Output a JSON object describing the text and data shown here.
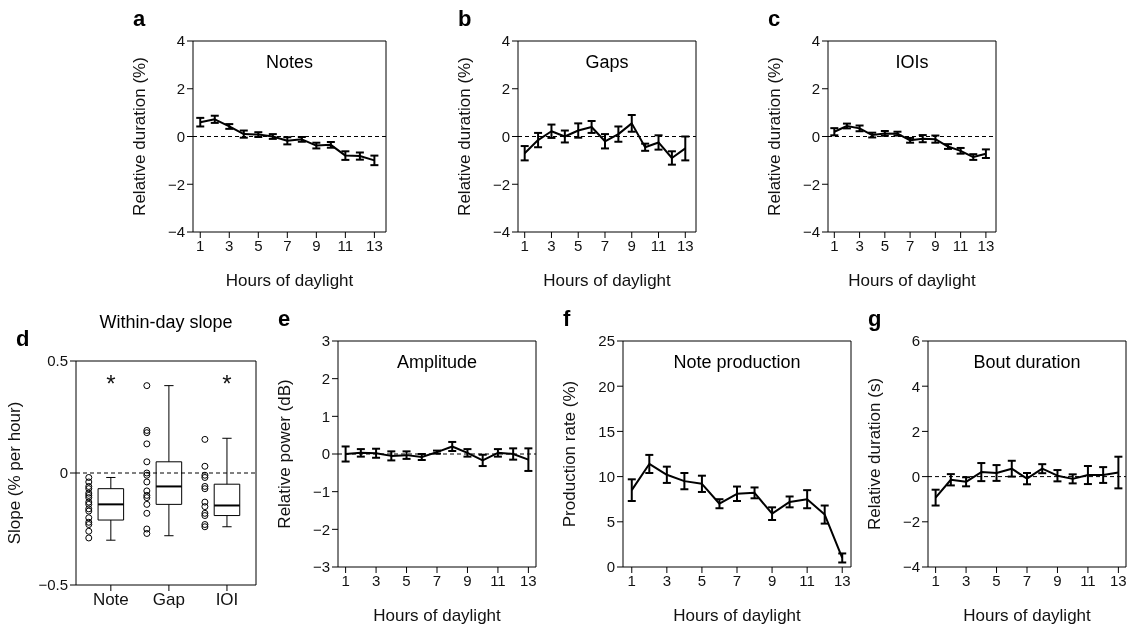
{
  "chart_data": [
    {
      "type": "line",
      "title": "Notes",
      "xlabel": "Hours of daylight",
      "ylabel": "Relative duration (%)",
      "annotations": [
        "a"
      ],
      "x": [
        1,
        2,
        3,
        4,
        5,
        6,
        7,
        8,
        9,
        10,
        11,
        12,
        13
      ],
      "xlim": [
        0.5,
        13.8
      ],
      "xticks": [
        1,
        3,
        5,
        7,
        9,
        11,
        13
      ],
      "ylim": [
        -4,
        4
      ],
      "yticks": [
        -4,
        -2,
        0,
        2,
        4
      ],
      "ref_lines": [
        {
          "axis": "y",
          "value": 0,
          "color": "#000000",
          "line_style": "dashed"
        }
      ],
      "series": [
        {
          "color": "#000000",
          "values": [
            0.6,
            0.72,
            0.42,
            0.1,
            0.08,
            0.0,
            -0.18,
            -0.12,
            -0.38,
            -0.35,
            -0.8,
            -0.82,
            -1.0
          ],
          "errors": [
            0.18,
            0.15,
            0.1,
            0.15,
            0.1,
            0.1,
            0.15,
            0.1,
            0.12,
            0.12,
            0.18,
            0.15,
            0.2
          ]
        }
      ]
    },
    {
      "type": "line",
      "title": "Gaps",
      "xlabel": "Hours of daylight",
      "ylabel": "Relative duration (%)",
      "annotations": [
        "b"
      ],
      "x": [
        1,
        2,
        3,
        4,
        5,
        6,
        7,
        8,
        9,
        10,
        11,
        12,
        13
      ],
      "xlim": [
        0.5,
        13.8
      ],
      "xticks": [
        1,
        3,
        5,
        7,
        9,
        11,
        13
      ],
      "ylim": [
        -4,
        4
      ],
      "yticks": [
        -4,
        -2,
        0,
        2,
        4
      ],
      "ref_lines": [
        {
          "axis": "y",
          "value": 0,
          "color": "#000000",
          "line_style": "dashed"
        }
      ],
      "series": [
        {
          "color": "#000000",
          "values": [
            -0.7,
            -0.15,
            0.22,
            0.0,
            0.25,
            0.4,
            -0.2,
            0.1,
            0.55,
            -0.45,
            -0.25,
            -0.9,
            -0.5
          ],
          "errors": [
            0.3,
            0.3,
            0.28,
            0.25,
            0.3,
            0.25,
            0.3,
            0.32,
            0.35,
            0.15,
            0.3,
            0.28,
            0.5
          ]
        }
      ]
    },
    {
      "type": "line",
      "title": "IOIs",
      "xlabel": "Hours of daylight",
      "ylabel": "Relative duration (%)",
      "annotations": [
        "c"
      ],
      "x": [
        1,
        2,
        3,
        4,
        5,
        6,
        7,
        8,
        9,
        10,
        11,
        12,
        13
      ],
      "xlim": [
        0.5,
        13.8
      ],
      "xticks": [
        1,
        3,
        5,
        7,
        9,
        11,
        13
      ],
      "ylim": [
        -4,
        4
      ],
      "yticks": [
        -4,
        -2,
        0,
        2,
        4
      ],
      "ref_lines": [
        {
          "axis": "y",
          "value": 0,
          "color": "#000000",
          "line_style": "dashed"
        }
      ],
      "series": [
        {
          "color": "#000000",
          "values": [
            0.2,
            0.44,
            0.34,
            0.06,
            0.13,
            0.12,
            -0.16,
            -0.09,
            -0.11,
            -0.42,
            -0.6,
            -0.86,
            -0.72
          ],
          "errors": [
            0.15,
            0.1,
            0.12,
            0.1,
            0.1,
            0.08,
            0.1,
            0.15,
            0.15,
            0.1,
            0.12,
            0.12,
            0.18
          ]
        }
      ]
    },
    {
      "type": "box",
      "title": "Within-day slope",
      "ylabel": "Slope (% per hour)",
      "annotations": [
        "d",
        "*",
        "*"
      ],
      "categories": [
        "Note",
        "Gap",
        "IOI"
      ],
      "ylim": [
        -0.5,
        0.5
      ],
      "yticks": [
        -0.5,
        0,
        0.5
      ],
      "ref_lines": [
        {
          "axis": "y",
          "value": 0,
          "color": "#000000",
          "line_style": "dashed"
        }
      ],
      "boxes": [
        {
          "low": -0.3,
          "q1": -0.21,
          "median": -0.14,
          "q3": -0.07,
          "high": -0.02
        },
        {
          "low": -0.28,
          "q1": -0.14,
          "median": -0.06,
          "q3": 0.05,
          "high": 0.39
        },
        {
          "low": -0.24,
          "q1": -0.19,
          "median": -0.145,
          "q3": -0.05,
          "high": 0.155
        }
      ],
      "series": [
        {
          "type": "scatter",
          "color": "#000000",
          "marker": "circle",
          "x": [
            "Note",
            "Note",
            "Note",
            "Note",
            "Note",
            "Note",
            "Note",
            "Note",
            "Note",
            "Note",
            "Note",
            "Note",
            "Note",
            "Note",
            "Note",
            "Note",
            "Gap",
            "Gap",
            "Gap",
            "Gap",
            "Gap",
            "Gap",
            "Gap",
            "Gap",
            "Gap",
            "Gap",
            "Gap",
            "Gap",
            "Gap",
            "Gap",
            "Gap",
            "IOI",
            "IOI",
            "IOI",
            "IOI",
            "IOI",
            "IOI",
            "IOI",
            "IOI",
            "IOI",
            "IOI",
            "IOI",
            "IOI"
          ],
          "values": [
            -0.02,
            -0.04,
            -0.06,
            -0.07,
            -0.09,
            -0.1,
            -0.11,
            -0.13,
            -0.14,
            -0.16,
            -0.17,
            -0.2,
            -0.22,
            -0.23,
            -0.26,
            -0.29,
            0.39,
            0.19,
            0.18,
            0.13,
            0.05,
            0.0,
            -0.01,
            -0.04,
            -0.08,
            -0.1,
            -0.11,
            -0.14,
            -0.18,
            -0.25,
            -0.27,
            0.15,
            0.03,
            -0.01,
            -0.02,
            -0.06,
            -0.07,
            -0.13,
            -0.15,
            -0.18,
            -0.19,
            -0.23,
            -0.24
          ]
        }
      ]
    },
    {
      "type": "line",
      "title": "Amplitude",
      "xlabel": "Hours of daylight",
      "ylabel": "Relative power (dB)",
      "annotations": [
        "e"
      ],
      "x": [
        1,
        2,
        3,
        4,
        5,
        6,
        7,
        8,
        9,
        10,
        11,
        12,
        13
      ],
      "xlim": [
        0.5,
        13.5
      ],
      "xticks": [
        1,
        3,
        5,
        7,
        9,
        11,
        13
      ],
      "ylim": [
        -3,
        3
      ],
      "yticks": [
        -3,
        -2,
        -1,
        0,
        1,
        2,
        3
      ],
      "ref_lines": [
        {
          "axis": "y",
          "value": 0,
          "color": "#000000",
          "line_style": "dashed"
        }
      ],
      "series": [
        {
          "color": "#000000",
          "values": [
            0.0,
            0.03,
            0.02,
            -0.05,
            -0.03,
            -0.08,
            0.05,
            0.2,
            0.03,
            -0.17,
            0.03,
            0.0,
            -0.15
          ],
          "errors": [
            0.2,
            0.1,
            0.12,
            0.12,
            0.1,
            0.08,
            0.04,
            0.12,
            0.1,
            0.15,
            0.1,
            0.15,
            0.3
          ]
        }
      ]
    },
    {
      "type": "line",
      "title": "Note production",
      "xlabel": "Hours of daylight",
      "ylabel": "Production rate (%)",
      "annotations": [
        "f"
      ],
      "x": [
        1,
        2,
        3,
        4,
        5,
        6,
        7,
        8,
        9,
        10,
        11,
        12,
        13
      ],
      "xlim": [
        0.5,
        13.5
      ],
      "xticks": [
        1,
        3,
        5,
        7,
        9,
        11,
        13
      ],
      "ylim": [
        0,
        25
      ],
      "yticks": [
        0,
        5,
        10,
        15,
        20,
        25
      ],
      "series": [
        {
          "color": "#000000",
          "values": [
            8.5,
            11.4,
            10.2,
            9.5,
            9.2,
            7.0,
            8.1,
            8.2,
            5.9,
            7.2,
            7.5,
            5.8,
            1.0
          ],
          "errors": [
            1.2,
            1.0,
            0.9,
            0.9,
            0.9,
            0.5,
            0.8,
            0.6,
            0.7,
            0.6,
            1.0,
            1.0,
            0.5
          ]
        }
      ]
    },
    {
      "type": "line",
      "title": "Bout duration",
      "xlabel": "Hours of daylight",
      "ylabel": "Relative duration (s)",
      "annotations": [
        "g"
      ],
      "x": [
        1,
        2,
        3,
        4,
        5,
        6,
        7,
        8,
        9,
        10,
        11,
        12,
        13
      ],
      "xlim": [
        0.5,
        13.5
      ],
      "xticks": [
        1,
        3,
        5,
        7,
        9,
        11,
        13
      ],
      "ylim": [
        -4,
        6
      ],
      "yticks": [
        -4,
        -2,
        0,
        2,
        4,
        6
      ],
      "ref_lines": [
        {
          "axis": "y",
          "value": 0,
          "color": "#000000",
          "line_style": "dashed"
        }
      ],
      "series": [
        {
          "color": "#000000",
          "values": [
            -0.93,
            -0.14,
            -0.23,
            0.2,
            0.16,
            0.35,
            -0.09,
            0.35,
            0.04,
            -0.1,
            0.07,
            0.07,
            0.18
          ],
          "errors": [
            0.35,
            0.25,
            0.2,
            0.4,
            0.35,
            0.35,
            0.25,
            0.2,
            0.25,
            0.2,
            0.4,
            0.35,
            0.7
          ]
        }
      ]
    }
  ]
}
